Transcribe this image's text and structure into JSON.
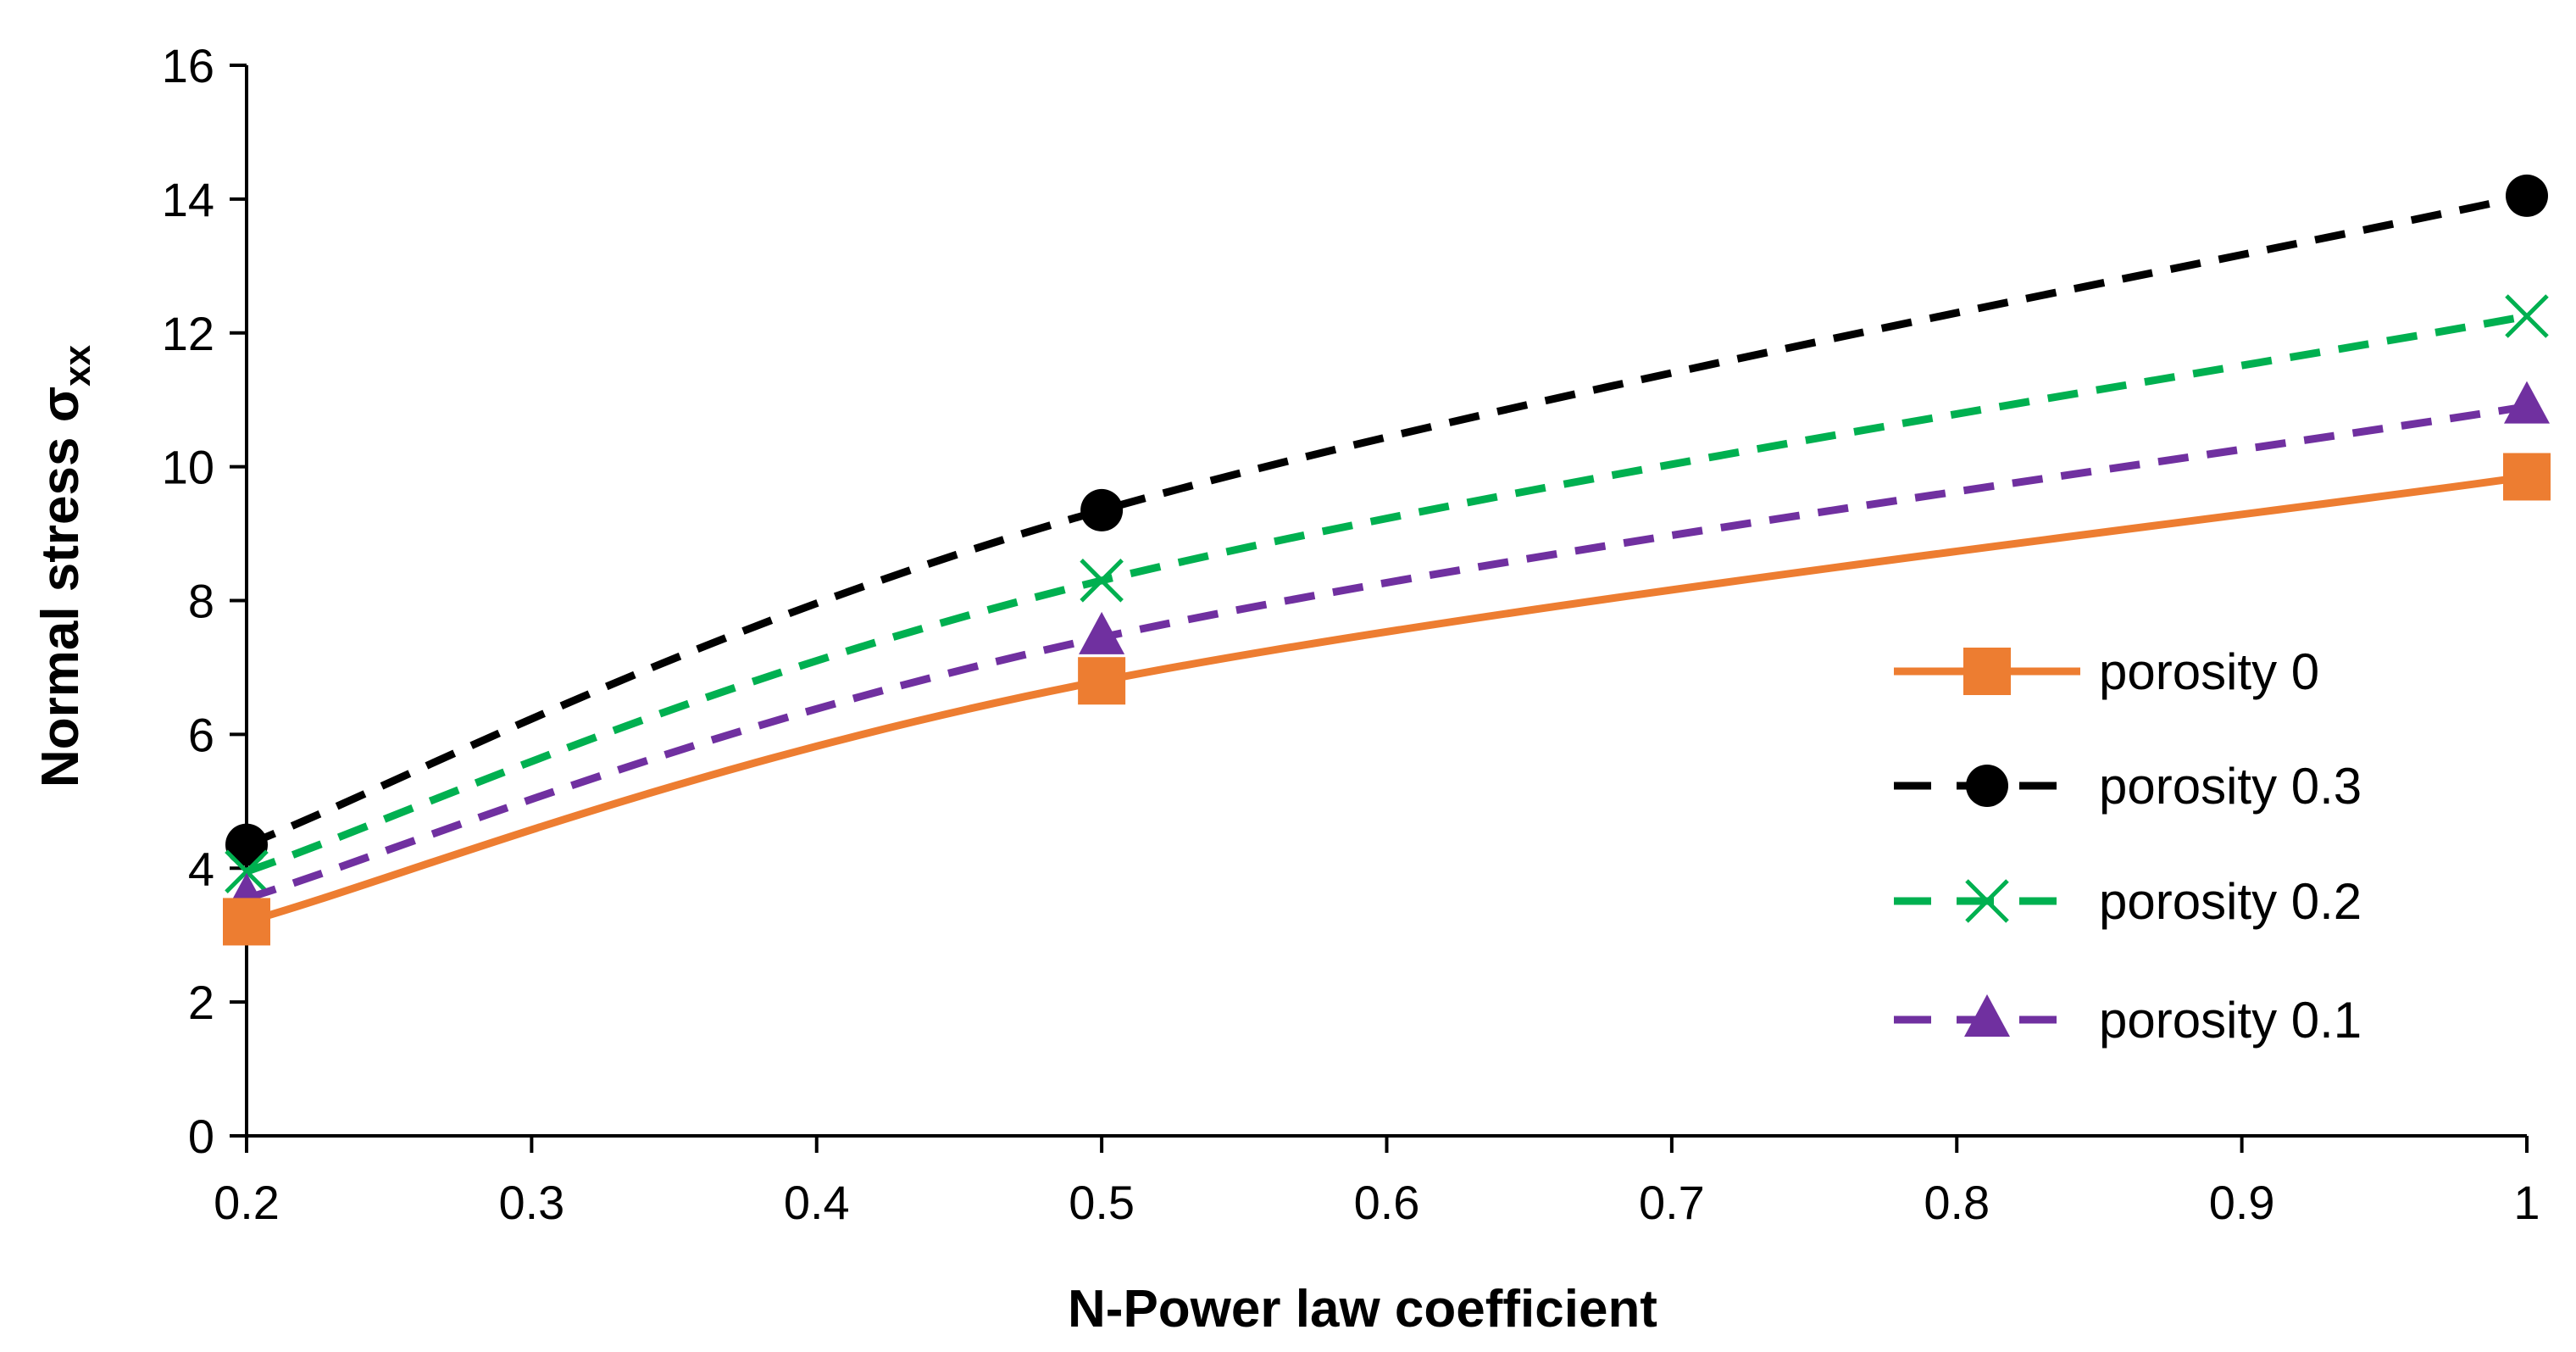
{
  "chart_data": {
    "type": "line",
    "title": "",
    "xlabel": "N-Power law coefficient",
    "ylabel": "Normal stress σ",
    "ylabel_subscript": "xx",
    "xlim": [
      0.2,
      1.0
    ],
    "ylim": [
      0,
      16
    ],
    "xticks": [
      "0.2",
      "0.3",
      "0.4",
      "0.5",
      "0.6",
      "0.7",
      "0.8",
      "0.9",
      "1"
    ],
    "yticks": [
      "0",
      "2",
      "4",
      "6",
      "8",
      "10",
      "12",
      "14",
      "16"
    ],
    "grid": false,
    "legend_position": "right",
    "x": [
      0.2,
      0.5,
      1.0
    ],
    "series": [
      {
        "name": "porosity 0",
        "values": [
          3.2,
          6.8,
          9.85
        ],
        "color": "#ED7D31",
        "marker": "square",
        "dash": "solid"
      },
      {
        "name": "porosity 0.3",
        "values": [
          4.35,
          9.35,
          14.05
        ],
        "color": "#000000",
        "marker": "circle",
        "dash": "dashed"
      },
      {
        "name": "porosity 0.2",
        "values": [
          3.95,
          8.3,
          12.25
        ],
        "color": "#00B050",
        "marker": "x",
        "dash": "dashed"
      },
      {
        "name": "porosity 0.1",
        "values": [
          3.55,
          7.45,
          10.9
        ],
        "color": "#7030A0",
        "marker": "triangle",
        "dash": "dashed"
      }
    ],
    "legend_order": [
      0,
      1,
      2,
      3
    ]
  }
}
